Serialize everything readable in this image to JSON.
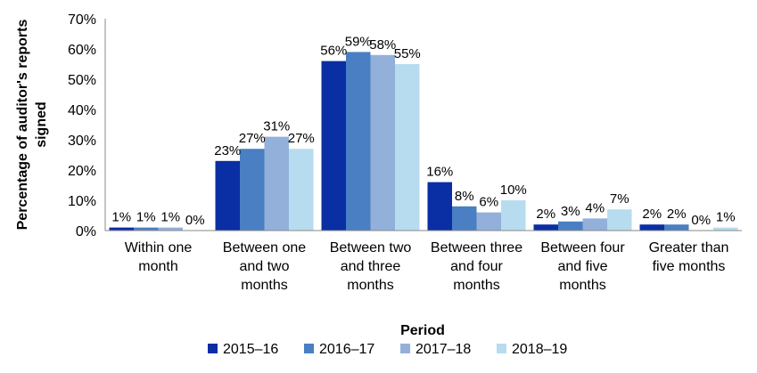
{
  "chart_data": {
    "type": "bar",
    "xlabel": "Period",
    "ylabel": "Percentage of auditor's reports signed",
    "ylim": [
      0,
      70
    ],
    "yticks": [
      "0%",
      "10%",
      "20%",
      "30%",
      "40%",
      "50%",
      "60%",
      "70%"
    ],
    "ytick_values": [
      0,
      10,
      20,
      30,
      40,
      50,
      60,
      70
    ],
    "grid": false,
    "legend_position": "bottom",
    "categories": [
      [
        "Within one",
        "month"
      ],
      [
        "Between one",
        "and two",
        "months"
      ],
      [
        "Between two",
        "and three",
        "months"
      ],
      [
        "Between three",
        "and four",
        "months"
      ],
      [
        "Between four",
        "and five",
        "months"
      ],
      [
        "Greater than",
        "five months"
      ]
    ],
    "series": [
      {
        "name": "2015–16",
        "color": "#0a2ea3",
        "values": [
          1,
          23,
          56,
          16,
          2,
          2
        ],
        "labels": [
          "1%",
          "23%",
          "56%",
          "16%",
          "2%",
          "2%"
        ]
      },
      {
        "name": "2016–17",
        "color": "#4a7fc3",
        "values": [
          1,
          27,
          59,
          8,
          3,
          2
        ],
        "labels": [
          "1%",
          "27%",
          "59%",
          "8%",
          "3%",
          "2%"
        ]
      },
      {
        "name": "2017–18",
        "color": "#93b0da",
        "values": [
          1,
          31,
          58,
          6,
          4,
          0
        ],
        "labels": [
          "1%",
          "31%",
          "58%",
          "6%",
          "4%",
          "0%"
        ]
      },
      {
        "name": "2018–19",
        "color": "#b7dcef",
        "values": [
          0,
          27,
          55,
          10,
          7,
          1
        ],
        "labels": [
          "0%",
          "27%",
          "55%",
          "10%",
          "7%",
          "1%"
        ]
      }
    ]
  }
}
